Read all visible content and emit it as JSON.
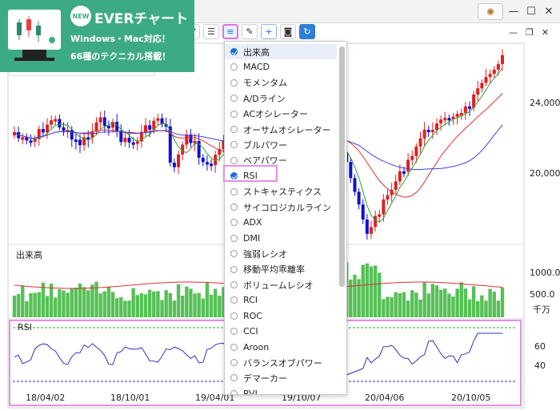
{
  "promo": {
    "badge": "NEW",
    "title": "EVERチャート",
    "line2": "Windows・Mac対応！",
    "line3": "66種のテクニカル搭載！"
  },
  "colors": {
    "promo_bg": "#3daa86",
    "up_candle": "#e02020",
    "down_candle": "#1010d0",
    "volume_bar": "#56c056",
    "rsi_line": "#3030c0",
    "ma_short": "#30a030",
    "ma_mid": "#e03030",
    "ma_long": "#4040e0",
    "highlight": "#e58fe5"
  },
  "toolbar": {
    "icons": [
      "expand-icon",
      "align-left-icon",
      "indicator-list-icon",
      "pen-icon",
      "add-icon",
      "camera-icon",
      "refresh-icon"
    ]
  },
  "chart": {
    "price_ticks": [
      "24,000",
      "20,000"
    ],
    "volume_label": "出来高",
    "volume_ticks": [
      "1000.0",
      "500.0"
    ],
    "volume_unit": "千万",
    "rsi_label": "RSI",
    "rsi_ticks": [
      "60",
      "40"
    ],
    "date_ticks": [
      "18/04/02",
      "18/10/01",
      "19/04/01",
      "19/10/07",
      "20/04/06",
      "20/10/05"
    ]
  },
  "menu": {
    "items": [
      {
        "label": "出来高",
        "checked": true
      },
      {
        "label": "MACD",
        "checked": false
      },
      {
        "label": "モメンタム",
        "checked": false
      },
      {
        "label": "A/Dライン",
        "checked": false
      },
      {
        "label": "ACオシレーター",
        "checked": false
      },
      {
        "label": "オーサムオシレーター",
        "checked": false
      },
      {
        "label": "ブルパワー",
        "checked": false
      },
      {
        "label": "ベアパワー",
        "checked": false
      },
      {
        "label": "RSI",
        "checked": true
      },
      {
        "label": "ストキャスティクス",
        "checked": false
      },
      {
        "label": "サイコロジカルライン",
        "checked": false
      },
      {
        "label": "ADX",
        "checked": false
      },
      {
        "label": "DMI",
        "checked": false
      },
      {
        "label": "強弱レシオ",
        "checked": false
      },
      {
        "label": "移動平均乖離率",
        "checked": false
      },
      {
        "label": "ボリュームレシオ",
        "checked": false
      },
      {
        "label": "RCI",
        "checked": false
      },
      {
        "label": "ROC",
        "checked": false
      },
      {
        "label": "CCI",
        "checked": false
      },
      {
        "label": "Aroon",
        "checked": false
      },
      {
        "label": "バランスオブパワー",
        "checked": false
      },
      {
        "label": "デマーカー",
        "checked": false
      },
      {
        "label": "RVI",
        "checked": false
      }
    ]
  }
}
